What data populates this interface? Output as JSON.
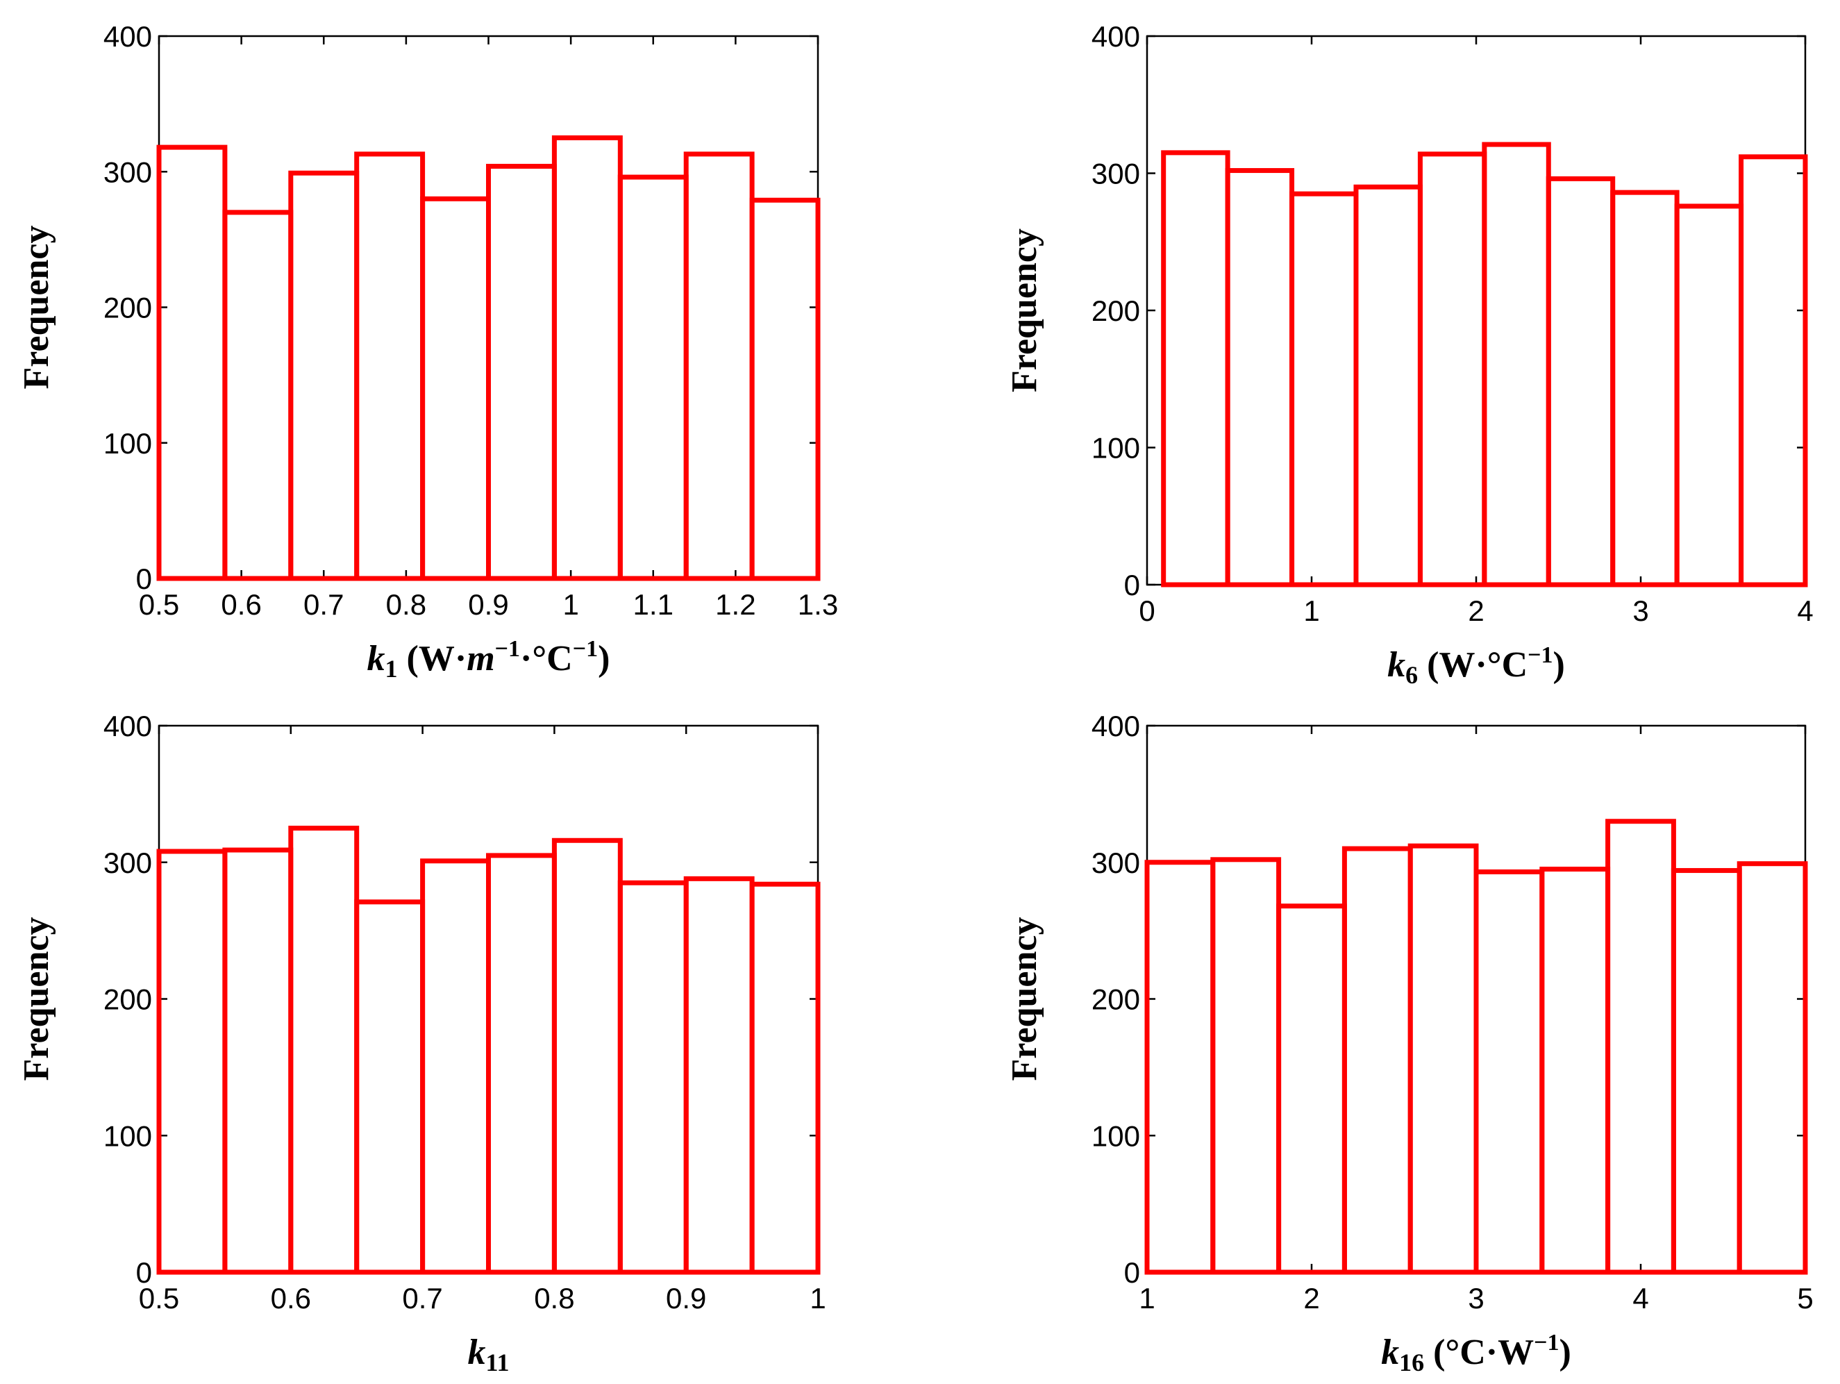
{
  "chart_data": [
    {
      "type": "bar",
      "title": "",
      "ylabel": "Frequency",
      "xlabel": {
        "var": "k",
        "sub": "1",
        "rest": [
          {
            "t": " (W·",
            "it": false
          },
          {
            "t": "m",
            "it": true
          },
          {
            "t": "−1",
            "sup": true
          },
          {
            "t": "·°C",
            "it": false
          },
          {
            "t": "−1",
            "sup": true
          },
          {
            "t": ")",
            "it": false
          }
        ]
      },
      "xlim": [
        0.5,
        1.3
      ],
      "ylim": [
        0,
        400
      ],
      "xticks": [
        "0.5",
        "0.6",
        "0.7",
        "0.8",
        "0.9",
        "1",
        "1.1",
        "1.2",
        "1.3"
      ],
      "xtick_values": [
        0.5,
        0.6,
        0.7,
        0.8,
        0.9,
        1.0,
        1.1,
        1.2,
        1.3
      ],
      "yticks": [
        "0",
        "100",
        "200",
        "300",
        "400"
      ],
      "ytick_values": [
        0,
        100,
        200,
        300,
        400
      ],
      "bin_edges": [
        0.5,
        0.58,
        0.66,
        0.74,
        0.82,
        0.9,
        0.98,
        1.06,
        1.14,
        1.22,
        1.3
      ],
      "values": [
        318,
        270,
        299,
        313,
        280,
        304,
        325,
        296,
        313,
        279
      ],
      "grid": false
    },
    {
      "type": "bar",
      "title": "",
      "ylabel": "Frequency",
      "xlabel": {
        "var": "k",
        "sub": "6",
        "rest": [
          {
            "t": " (W·°C",
            "it": false
          },
          {
            "t": "−1",
            "sup": true
          },
          {
            "t": ")",
            "it": false
          }
        ]
      },
      "xlim": [
        0,
        4
      ],
      "ylim": [
        0,
        400
      ],
      "xticks": [
        "0",
        "1",
        "2",
        "3",
        "4"
      ],
      "xtick_values": [
        0,
        1,
        2,
        3,
        4
      ],
      "yticks": [
        "0",
        "100",
        "200",
        "300",
        "400"
      ],
      "ytick_values": [
        0,
        100,
        200,
        300,
        400
      ],
      "bin_edges": [
        0.1,
        0.49,
        0.88,
        1.27,
        1.66,
        2.05,
        2.44,
        2.83,
        3.22,
        3.61,
        4.0
      ],
      "values": [
        315,
        302,
        285,
        290,
        314,
        321,
        296,
        286,
        276,
        312
      ],
      "grid": false
    },
    {
      "type": "bar",
      "title": "",
      "ylabel": "Frequency",
      "xlabel": {
        "var": "k",
        "sub": "11",
        "rest": []
      },
      "xlim": [
        0.5,
        1.0
      ],
      "ylim": [
        0,
        400
      ],
      "xticks": [
        "0.5",
        "0.6",
        "0.7",
        "0.8",
        "0.9",
        "1"
      ],
      "xtick_values": [
        0.5,
        0.6,
        0.7,
        0.8,
        0.9,
        1.0
      ],
      "yticks": [
        "0",
        "100",
        "200",
        "300",
        "400"
      ],
      "ytick_values": [
        0,
        100,
        200,
        300,
        400
      ],
      "bin_edges": [
        0.5,
        0.55,
        0.6,
        0.65,
        0.7,
        0.75,
        0.8,
        0.85,
        0.9,
        0.95,
        1.0
      ],
      "values": [
        308,
        309,
        325,
        271,
        301,
        305,
        316,
        285,
        288,
        284
      ],
      "grid": false
    },
    {
      "type": "bar",
      "title": "",
      "ylabel": "Frequency",
      "xlabel": {
        "var": "k",
        "sub": "16",
        "rest": [
          {
            "t": " (°C·W",
            "it": false
          },
          {
            "t": "−1",
            "sup": true
          },
          {
            "t": ")",
            "it": false
          }
        ]
      },
      "xlim": [
        1,
        5
      ],
      "ylim": [
        0,
        400
      ],
      "xticks": [
        "1",
        "2",
        "3",
        "4",
        "5"
      ],
      "xtick_values": [
        1,
        2,
        3,
        4,
        5
      ],
      "yticks": [
        "0",
        "100",
        "200",
        "300",
        "400"
      ],
      "ytick_values": [
        0,
        100,
        200,
        300,
        400
      ],
      "bin_edges": [
        1.0,
        1.4,
        1.8,
        2.2,
        2.6,
        3.0,
        3.4,
        3.8,
        4.2,
        4.6,
        5.0
      ],
      "values": [
        300,
        302,
        268,
        310,
        312,
        293,
        295,
        330,
        294,
        299
      ],
      "grid": false
    }
  ],
  "colors": {
    "bar_edge": "#ff0000",
    "axes": "#000000",
    "background": "#ffffff"
  }
}
